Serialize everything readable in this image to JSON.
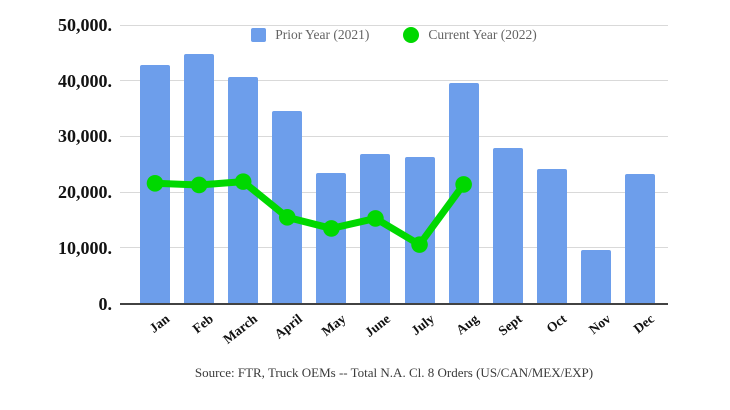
{
  "chart_data": {
    "type": "combo-bar-line",
    "title": "",
    "categories": [
      "Jan",
      "Feb",
      "March",
      "April",
      "May",
      "June",
      "July",
      "Aug",
      "Sept",
      "Oct",
      "Nov",
      "Dec"
    ],
    "series": [
      {
        "name": "Prior Year (2021)",
        "type": "bar",
        "color": "#6d9eeb",
        "values": [
          42800,
          44800,
          40600,
          34600,
          23400,
          26800,
          26300,
          39600,
          28000,
          24200,
          9700,
          23300
        ]
      },
      {
        "name": "Current Year (2022)",
        "type": "line",
        "color": "#00d800",
        "values": [
          21600,
          21300,
          21900,
          15500,
          13500,
          15300,
          10600,
          21400,
          null,
          null,
          null,
          null
        ]
      }
    ],
    "xlabel": "",
    "ylabel": "",
    "ylim": [
      0,
      50000
    ],
    "yticks": [
      {
        "value": 50000,
        "label": "50,000."
      },
      {
        "value": 40000,
        "label": "40,000."
      },
      {
        "value": 30000,
        "label": "30,000."
      },
      {
        "value": 20000,
        "label": "20,000."
      },
      {
        "value": 10000,
        "label": "10,000."
      },
      {
        "value": 0,
        "label": "0."
      }
    ],
    "grid": true,
    "legend_position": "top-center",
    "source_note": "Source: FTR, Truck OEMs -- Total N.A. Cl. 8 Orders (US/CAN/MEX/EXP)",
    "colors": {
      "bar_series": "#6d9eeb",
      "line_series": "#00d800",
      "gridline": "#d9d9d9",
      "axis_line": "#424242"
    }
  }
}
